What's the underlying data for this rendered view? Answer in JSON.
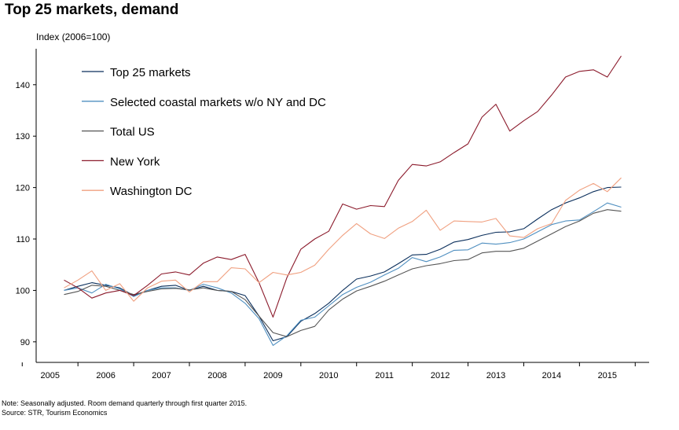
{
  "title": "Top 25 markets, demand",
  "note": "Note: Seasonally adjusted. Room demand quarterly through first quarter 2015.",
  "source": "Source: STR, Tourism Economics",
  "chart_data": {
    "type": "line",
    "title": "Top 25 markets, demand",
    "ylabel": "Index (2006=100)",
    "xlabel": "",
    "ylim": [
      86,
      147
    ],
    "xlim": [
      2004.75,
      2015.75
    ],
    "yticks": [
      90,
      100,
      110,
      120,
      130,
      140
    ],
    "xticks": [
      2005,
      2006,
      2007,
      2008,
      2009,
      2010,
      2011,
      2012,
      2013,
      2014,
      2015
    ],
    "grid": false,
    "legend_position": "top-left",
    "x": [
      2005.25,
      2005.5,
      2005.75,
      2006.0,
      2006.25,
      2006.5,
      2006.75,
      2007.0,
      2007.25,
      2007.5,
      2007.75,
      2008.0,
      2008.25,
      2008.5,
      2008.75,
      2009.0,
      2009.25,
      2009.5,
      2009.75,
      2010.0,
      2010.25,
      2010.5,
      2010.75,
      2011.0,
      2011.25,
      2011.5,
      2011.75,
      2012.0,
      2012.25,
      2012.5,
      2012.75,
      2013.0,
      2013.25,
      2013.5,
      2013.75,
      2014.0,
      2014.25,
      2014.5,
      2014.75,
      2015.0,
      2015.25
    ],
    "series": [
      {
        "name": "Top 25 markets",
        "color": "#0b2f5c",
        "values": [
          100.0,
          100.8,
          101.5,
          101.0,
          100.5,
          99.0,
          100.0,
          100.8,
          101.0,
          100.0,
          100.8,
          100.0,
          99.8,
          99.0,
          95.0,
          90.2,
          91.0,
          94.0,
          95.5,
          97.5,
          100.0,
          102.2,
          102.8,
          103.6,
          105.2,
          106.9,
          107.0,
          108.0,
          109.4,
          109.9,
          110.7,
          111.3,
          111.4,
          112.0,
          113.9,
          115.7,
          117.0,
          118.0,
          119.2,
          120.0,
          120.1
        ]
      },
      {
        "name": "Selected coastal markets w/o NY and DC",
        "color": "#4f8fc0",
        "values": [
          100.0,
          100.5,
          99.5,
          101.2,
          100.3,
          98.8,
          100.0,
          100.5,
          100.5,
          100.0,
          101.2,
          100.5,
          99.5,
          97.5,
          94.5,
          89.3,
          91.2,
          94.2,
          94.8,
          97.0,
          99.2,
          100.6,
          101.6,
          103.0,
          104.3,
          106.4,
          105.6,
          106.5,
          107.8,
          107.9,
          109.2,
          109.0,
          109.3,
          110.0,
          111.4,
          112.8,
          113.5,
          113.7,
          115.3,
          117.0,
          116.2
        ]
      },
      {
        "name": "Total US",
        "color": "#555555",
        "values": [
          99.2,
          99.8,
          101.0,
          100.8,
          100.0,
          99.2,
          99.8,
          100.3,
          100.4,
          100.1,
          100.5,
          100.0,
          99.8,
          98.2,
          95.0,
          91.8,
          91.0,
          92.2,
          93.0,
          96.2,
          98.3,
          99.9,
          100.8,
          101.8,
          103.0,
          104.2,
          104.8,
          105.2,
          105.8,
          106.0,
          107.3,
          107.6,
          107.6,
          108.2,
          109.6,
          111.0,
          112.4,
          113.5,
          115.0,
          115.7,
          115.4
        ]
      },
      {
        "name": "New York",
        "color": "#8b1a2b",
        "values": [
          102.0,
          100.5,
          98.5,
          99.5,
          100.0,
          99.0,
          101.0,
          103.2,
          103.6,
          103.0,
          105.3,
          106.5,
          106.0,
          107.0,
          101.5,
          94.8,
          102.5,
          108.0,
          110.0,
          111.5,
          116.8,
          115.8,
          116.5,
          116.3,
          121.4,
          124.5,
          124.2,
          125.0,
          126.8,
          128.5,
          133.7,
          136.2,
          131.0,
          133.0,
          134.8,
          138.0,
          141.5,
          142.6,
          142.9,
          141.5,
          145.6
        ]
      },
      {
        "name": "Washington DC",
        "color": "#f0a080",
        "values": [
          100.5,
          102.0,
          103.8,
          100.0,
          101.3,
          97.9,
          100.5,
          101.8,
          102.0,
          99.7,
          101.7,
          101.7,
          104.4,
          104.2,
          101.5,
          103.5,
          103.0,
          103.5,
          104.9,
          108.0,
          110.7,
          113.0,
          111.0,
          110.1,
          112.1,
          113.4,
          115.6,
          111.7,
          113.5,
          113.4,
          113.3,
          114.0,
          110.6,
          110.3,
          112.0,
          113.0,
          117.5,
          119.5,
          120.8,
          119.2,
          121.9
        ]
      }
    ]
  },
  "colors": {
    "axis": "#000000",
    "background": "#ffffff"
  }
}
